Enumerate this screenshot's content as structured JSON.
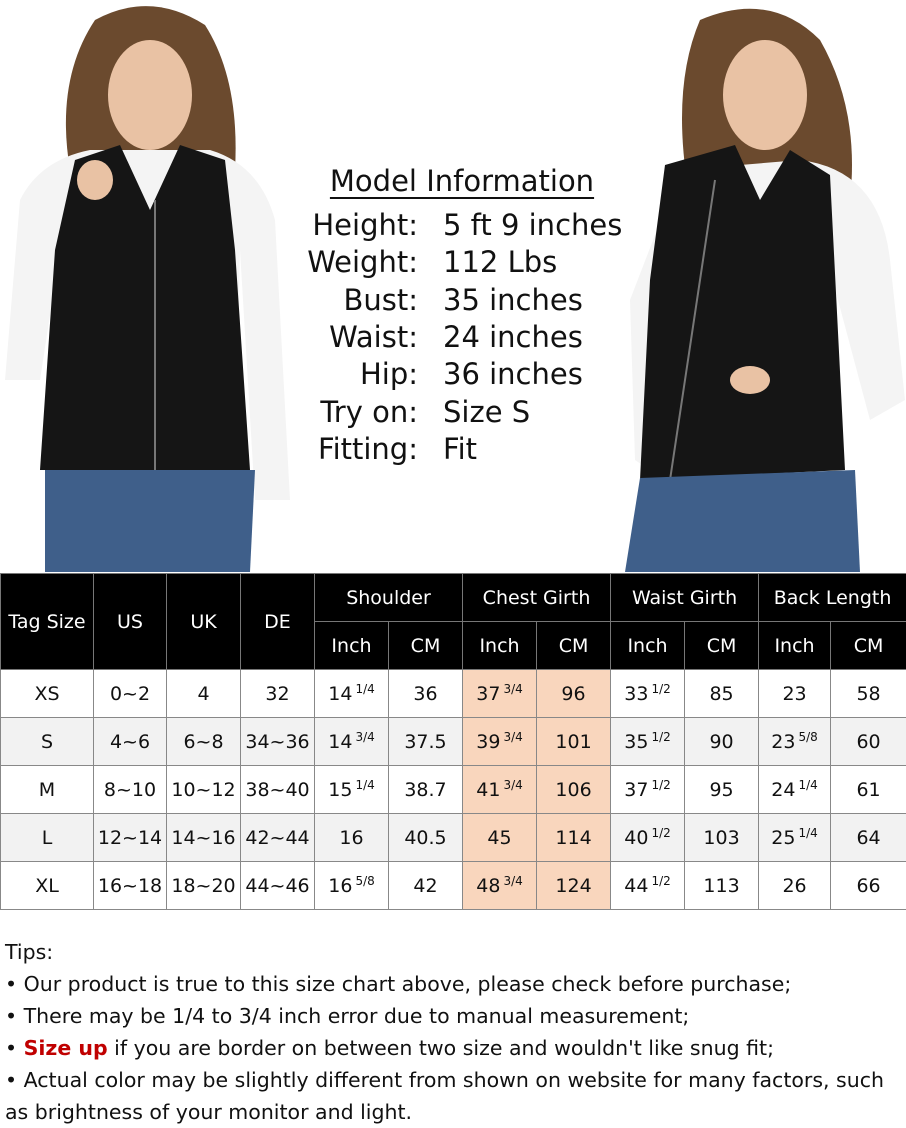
{
  "model_info": {
    "title": "Model Information",
    "items": [
      {
        "label": "Height:",
        "value": "5 ft 9 inches"
      },
      {
        "label": "Weight:",
        "value": "112 Lbs"
      },
      {
        "label": "Bust:",
        "value": "35 inches"
      },
      {
        "label": "Waist:",
        "value": "24 inches"
      },
      {
        "label": "Hip:",
        "value": "36 inches"
      },
      {
        "label": "Try on:",
        "value": "Size S"
      },
      {
        "label": "Fitting:",
        "value": "Fit"
      }
    ]
  },
  "table": {
    "single_headers": [
      "Tag Size",
      "US",
      "UK",
      "DE"
    ],
    "group_headers": [
      "Shoulder",
      "Chest Girth",
      "Waist Girth",
      "Back Length"
    ],
    "unit_headers": [
      "Inch",
      "CM",
      "Inch",
      "CM",
      "Inch",
      "CM",
      "Inch",
      "CM"
    ],
    "rows": [
      [
        "XS",
        "0~2",
        "4",
        "32",
        {
          "whole": "14",
          "fraction": "1/4"
        },
        "36",
        {
          "whole": "37",
          "fraction": "3/4"
        },
        "96",
        {
          "whole": "33",
          "fraction": "1/2"
        },
        "85",
        "23",
        "58"
      ],
      [
        "S",
        "4~6",
        "6~8",
        "34~36",
        {
          "whole": "14",
          "fraction": "3/4"
        },
        "37.5",
        {
          "whole": "39",
          "fraction": "3/4"
        },
        "101",
        {
          "whole": "35",
          "fraction": "1/2"
        },
        "90",
        {
          "whole": "23",
          "fraction": "5/8"
        },
        "60"
      ],
      [
        "M",
        "8~10",
        "10~12",
        "38~40",
        {
          "whole": "15",
          "fraction": "1/4"
        },
        "38.7",
        {
          "whole": "41",
          "fraction": "3/4"
        },
        "106",
        {
          "whole": "37",
          "fraction": "1/2"
        },
        "95",
        {
          "whole": "24",
          "fraction": "1/4"
        },
        "61"
      ],
      [
        "L",
        "12~14",
        "14~16",
        "42~44",
        "16",
        "40.5",
        "45",
        "114",
        {
          "whole": "40",
          "fraction": "1/2"
        },
        "103",
        {
          "whole": "25",
          "fraction": "1/4"
        },
        "64"
      ],
      [
        "XL",
        "16~18",
        "18~20",
        "44~46",
        {
          "whole": "16",
          "fraction": "5/8"
        },
        "42",
        {
          "whole": "48",
          "fraction": "3/4"
        },
        "124",
        {
          "whole": "44",
          "fraction": "1/2"
        },
        "113",
        "26",
        "66"
      ]
    ]
  },
  "tips": {
    "heading": "Tips:",
    "items": [
      [
        {
          "text": "Our product is true to this size chart above, please check before purchase;"
        }
      ],
      [
        {
          "text": "There may be 1/4 to 3/4 inch error due to manual measurement;"
        }
      ],
      [
        {
          "text": "Size up",
          "emphasis": true
        },
        {
          "text": " if you are border on between two size and wouldn't like snug fit;"
        }
      ],
      [
        {
          "text": "Actual color may be slightly different from shown on website for many factors, such as brightness of your monitor and light."
        }
      ]
    ]
  }
}
